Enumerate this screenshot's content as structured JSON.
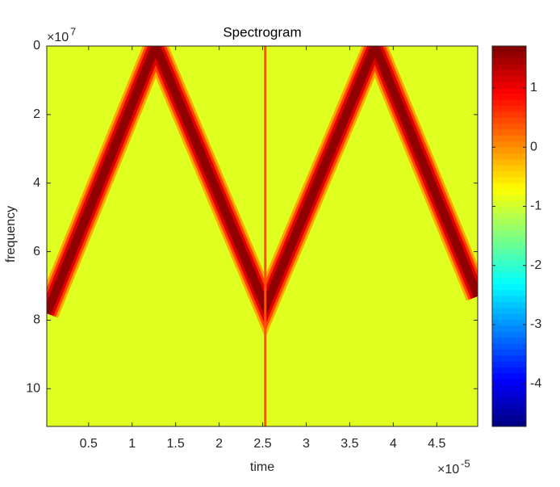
{
  "chart_data": {
    "type": "spectrogram",
    "title": "Spectrogram",
    "xlabel": "time",
    "ylabel": "frequency",
    "x_multiplier": {
      "base": "×10",
      "exponent": "-5"
    },
    "y_multiplier": {
      "base": "×10",
      "exponent": "7"
    },
    "xlim": [
      0.02,
      4.97
    ],
    "xticks": [
      0.5,
      1,
      1.5,
      2,
      2.5,
      3,
      3.5,
      4,
      4.5
    ],
    "ylim": [
      0,
      11.1
    ],
    "yticks": [
      0,
      2,
      4,
      6,
      8,
      10
    ],
    "y_reversed": true,
    "colormap": "jet",
    "background_level": -0.9,
    "ridge": {
      "x": [
        0.02,
        1.27,
        2.53,
        3.79,
        4.97
      ],
      "y": [
        7.8,
        0,
        7.6,
        0,
        7.3
      ],
      "level": 1.6
    },
    "impulse": {
      "x": 2.53,
      "level": 0.4
    },
    "colorbar": {
      "clim": [
        -4.72,
        1.71
      ],
      "ticks": [
        -4,
        -3,
        -2,
        -1,
        0,
        1
      ]
    }
  }
}
